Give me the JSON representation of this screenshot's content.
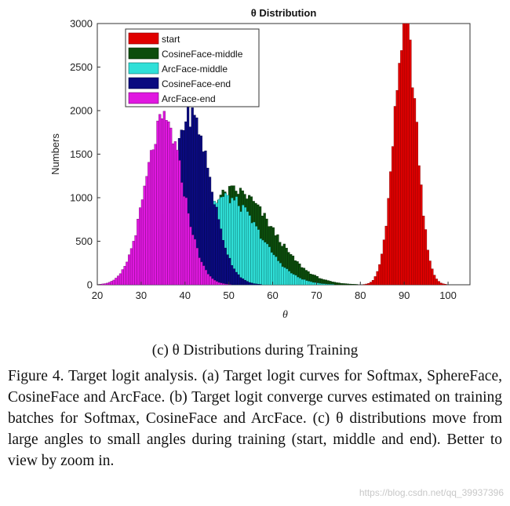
{
  "chart_data": {
    "type": "bar",
    "title": "θ Distribution",
    "xlabel": "θ",
    "ylabel": "Numbers",
    "xlim": [
      20,
      105
    ],
    "ylim": [
      0,
      3000
    ],
    "xticks": [
      "20",
      "30",
      "40",
      "50",
      "60",
      "70",
      "80",
      "90",
      "100"
    ],
    "yticks": [
      "0",
      "500",
      "1000",
      "1500",
      "2000",
      "2500",
      "3000"
    ],
    "bin_width": 0.5,
    "legend_position": "top-left",
    "series": [
      {
        "name": "start",
        "color": "#e00000",
        "edge": "#7a0000",
        "mean": 90,
        "std": 2.6,
        "peak": 2950
      },
      {
        "name": "CosineFace-middle",
        "color": "#0c4d0c",
        "edge": "#052805",
        "mean": 51,
        "std": 8.5,
        "peak": 1080
      },
      {
        "name": "ArcFace-middle",
        "color": "#30e0d8",
        "edge": "#0a6a66",
        "mean": 49,
        "std": 7.5,
        "peak": 1000
      },
      {
        "name": "CosineFace-end",
        "color": "#0a0a80",
        "edge": "#050540",
        "mean": 41,
        "std": 4.6,
        "peak": 1950
      },
      {
        "name": "ArcFace-end",
        "color": "#e018e0",
        "edge": "#700a70",
        "mean": 35,
        "std": 4.3,
        "peak": 1880
      }
    ]
  },
  "subcaption": "(c) θ Distributions during Training",
  "caption": "Figure 4. Target logit analysis. (a) Target logit curves for Softmax, SphereFace, CosineFace and ArcFace. (b) Target logit converge curves estimated on training batches for Softmax, CosineFace and ArcFace. (c) θ distributions move from large angles to small angles during training (start, middle and end). Better to view by zoom in.",
  "watermark": "https://blog.csdn.net/qq_39937396"
}
